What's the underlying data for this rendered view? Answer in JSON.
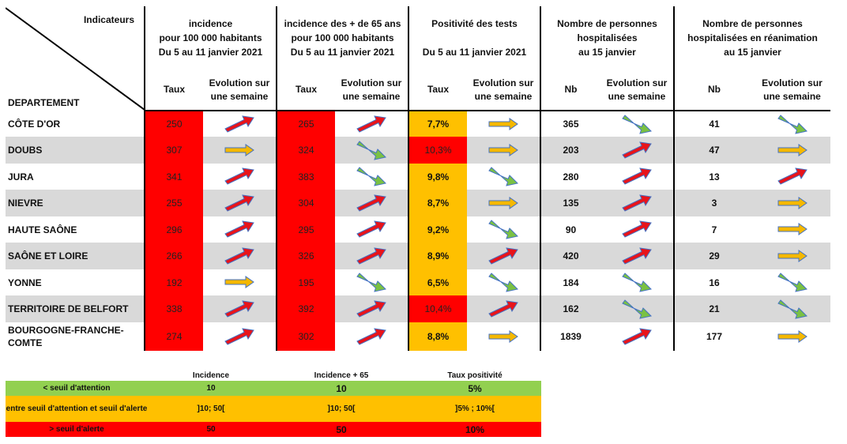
{
  "header": {
    "corner_top": "Indicateurs",
    "corner_bottom": "DEPARTEMENT",
    "groups": [
      {
        "lines": [
          "incidence",
          "pour 100 000 habitants",
          "Du 5 au 11 janvier 2021"
        ],
        "sub1": "Taux",
        "sub2": [
          "Evolution sur",
          "une semaine"
        ]
      },
      {
        "lines": [
          "incidence des + de 65 ans",
          "pour 100 000 habitants",
          "Du 5 au 11 janvier 2021"
        ],
        "sub1": "Taux",
        "sub2": [
          "Evolution sur",
          "une semaine"
        ]
      },
      {
        "lines": [
          "Positivité des tests",
          "",
          "Du 5 au 11 janvier 2021"
        ],
        "sub1": "Taux",
        "sub2": [
          "Evolution sur",
          "une semaine"
        ]
      },
      {
        "lines": [
          "Nombre de personnes",
          "hospitalisées",
          "au 15 janvier"
        ],
        "sub1": "Nb",
        "sub2": [
          "Evolution sur",
          "une semaine"
        ]
      },
      {
        "lines": [
          "Nombre de personnes",
          "hospitalisées en réanimation",
          "au 15 janvier"
        ],
        "sub1": "Nb",
        "sub2": [
          "Evolution sur",
          "une semaine"
        ]
      }
    ]
  },
  "arrow_colors": {
    "up": "#e8141a",
    "flat": "#f5b800",
    "down": "#7ac143",
    "outline": "#4472c4"
  },
  "level_colors": {
    "red": "#ff0000",
    "amber": "#ffc000",
    "green": "#92d050"
  },
  "rows": [
    {
      "dept": "CÔTE D'OR",
      "inc": "250",
      "inc_t": "up",
      "inc65": "265",
      "inc65_t": "up",
      "pos": "7,7%",
      "pos_level": "amber",
      "pos_t": "flat",
      "hosp": "365",
      "hosp_t": "down",
      "rea": "41",
      "rea_t": "down"
    },
    {
      "dept": "DOUBS",
      "inc": "307",
      "inc_t": "flat",
      "inc65": "324",
      "inc65_t": "down",
      "pos": "10,3%",
      "pos_level": "red",
      "pos_t": "flat",
      "hosp": "203",
      "hosp_t": "up",
      "rea": "47",
      "rea_t": "flat"
    },
    {
      "dept": "JURA",
      "inc": "341",
      "inc_t": "up",
      "inc65": "383",
      "inc65_t": "down",
      "pos": "9,8%",
      "pos_level": "amber",
      "pos_t": "down",
      "hosp": "280",
      "hosp_t": "up",
      "rea": "13",
      "rea_t": "up"
    },
    {
      "dept": "NIEVRE",
      "inc": "255",
      "inc_t": "up",
      "inc65": "304",
      "inc65_t": "up",
      "pos": "8,7%",
      "pos_level": "amber",
      "pos_t": "flat",
      "hosp": "135",
      "hosp_t": "up",
      "rea": "3",
      "rea_t": "flat"
    },
    {
      "dept": "HAUTE SAÔNE",
      "inc": "296",
      "inc_t": "up",
      "inc65": "295",
      "inc65_t": "up",
      "pos": "9,2%",
      "pos_level": "amber",
      "pos_t": "down",
      "hosp": "90",
      "hosp_t": "up",
      "rea": "7",
      "rea_t": "flat"
    },
    {
      "dept": "SAÔNE ET LOIRE",
      "inc": "266",
      "inc_t": "up",
      "inc65": "326",
      "inc65_t": "up",
      "pos": "8,9%",
      "pos_level": "amber",
      "pos_t": "up",
      "hosp": "420",
      "hosp_t": "up",
      "rea": "29",
      "rea_t": "flat"
    },
    {
      "dept": "YONNE",
      "inc": "192",
      "inc_t": "flat",
      "inc65": "195",
      "inc65_t": "down",
      "pos": "6,5%",
      "pos_level": "amber",
      "pos_t": "down",
      "hosp": "184",
      "hosp_t": "down",
      "rea": "16",
      "rea_t": "down"
    },
    {
      "dept": "TERRITOIRE DE BELFORT",
      "inc": "338",
      "inc_t": "up",
      "inc65": "392",
      "inc65_t": "up",
      "pos": "10,4%",
      "pos_level": "red",
      "pos_t": "up",
      "hosp": "162",
      "hosp_t": "down",
      "rea": "21",
      "rea_t": "down"
    },
    {
      "dept": "BOURGOGNE-FRANCHE-COMTE",
      "inc": "274",
      "inc_t": "up",
      "inc65": "302",
      "inc65_t": "up",
      "pos": "8,8%",
      "pos_level": "amber",
      "pos_t": "flat",
      "hosp": "1839",
      "hosp_t": "up",
      "rea": "177",
      "rea_t": "flat"
    }
  ],
  "legend": {
    "headers": [
      "Incidence",
      "Incidence + 65",
      "Taux positivité"
    ],
    "rows": [
      {
        "label": "< seuil d'attention",
        "values": [
          "10",
          "10",
          "5%"
        ]
      },
      {
        "label": "entre seuil d'attention et seuil d'alerte",
        "values": [
          "]10; 50[",
          "]10; 50[",
          "]5% ; 10%["
        ]
      },
      {
        "label": "> seuil d'alerte",
        "values": [
          "50",
          "50",
          "10%"
        ]
      }
    ]
  }
}
